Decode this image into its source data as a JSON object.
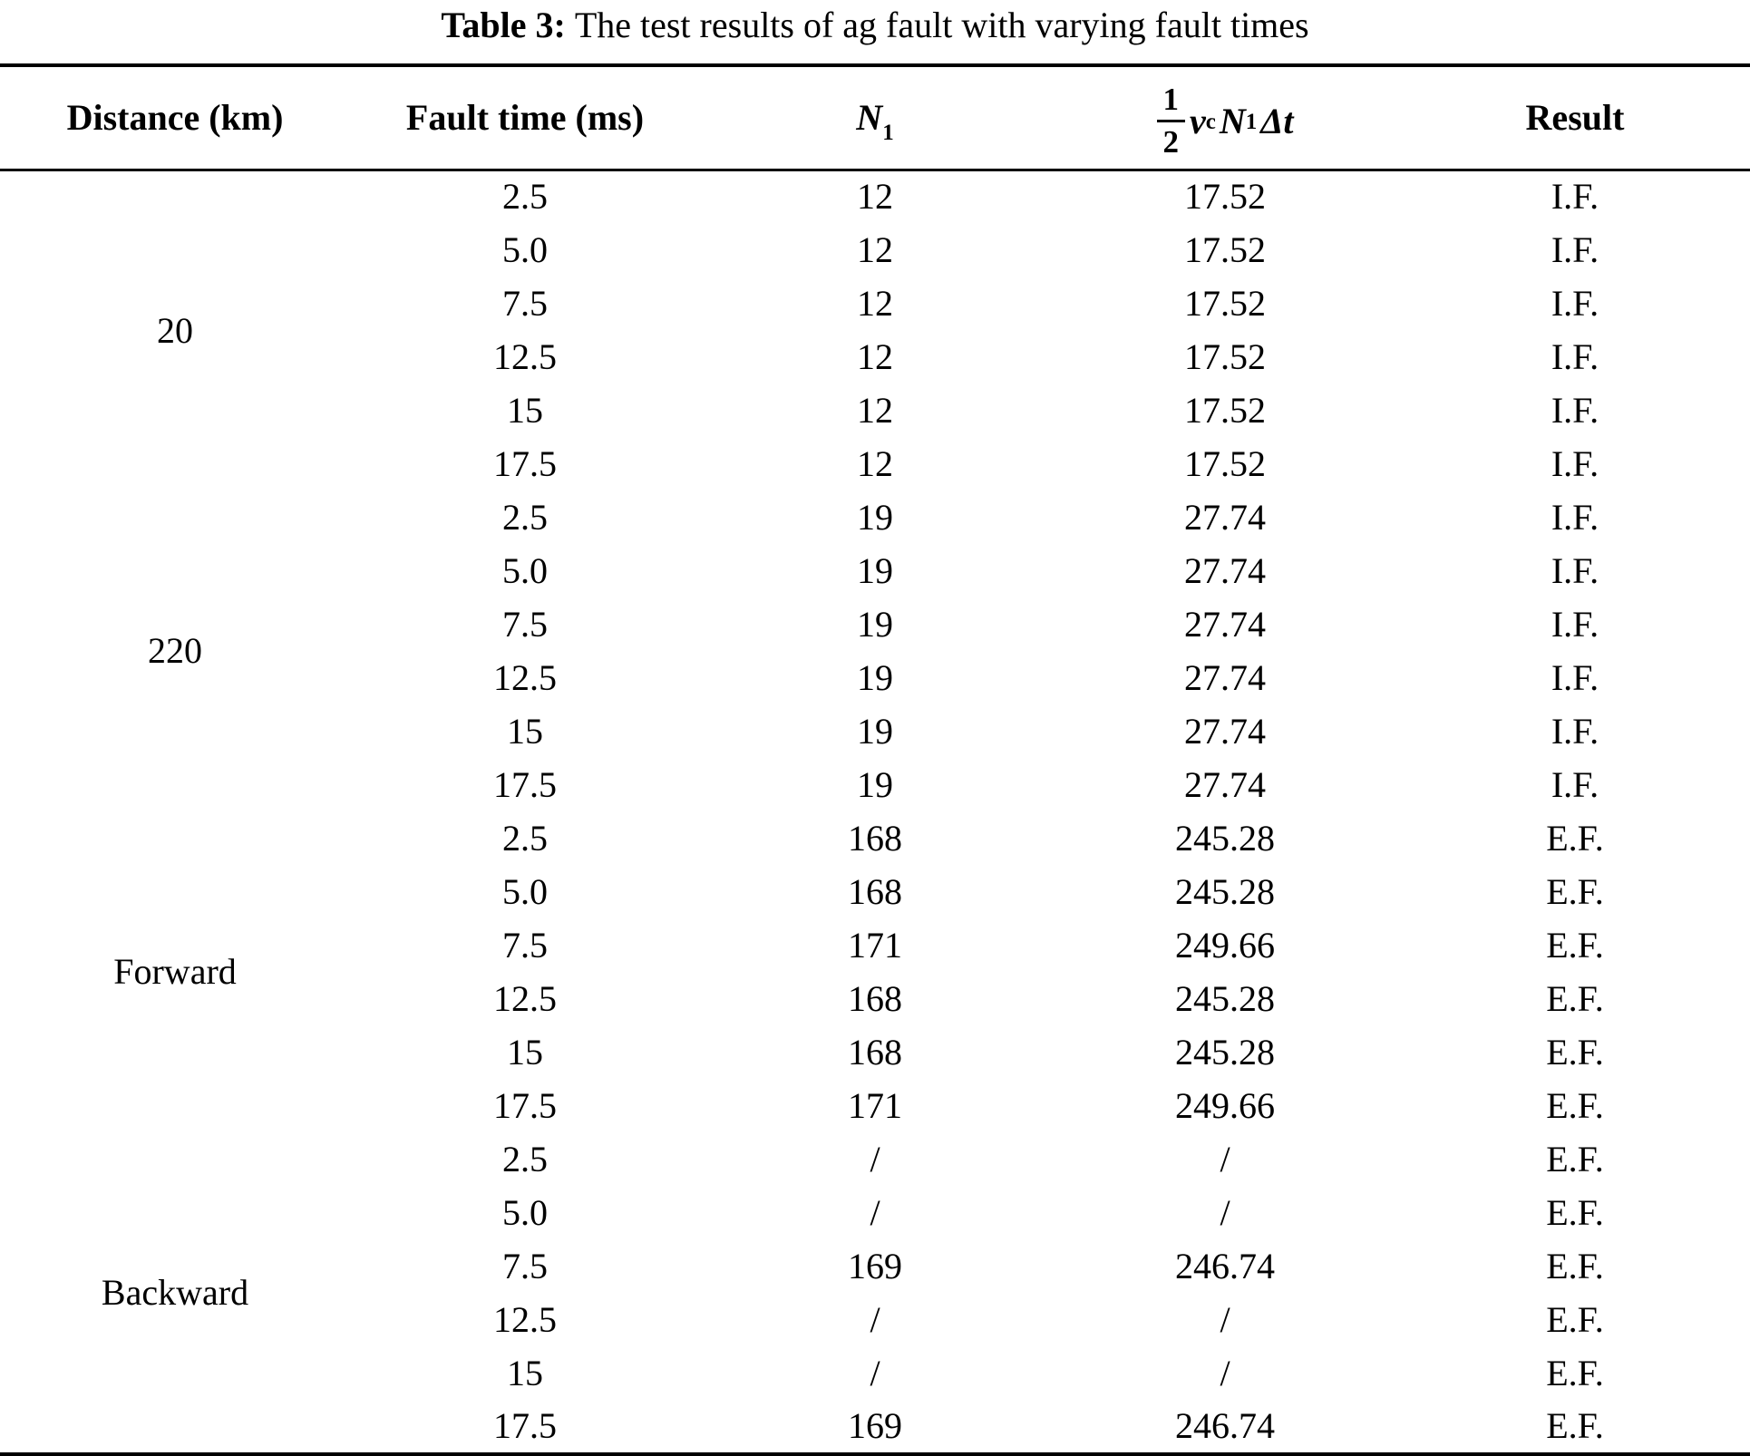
{
  "page": {
    "background": "#ffffff",
    "text_color": "#000000"
  },
  "caption": {
    "label": "Table 3:",
    "text": "The test results of ag fault with varying fault times"
  },
  "table": {
    "headers": {
      "distance": "Distance (km)",
      "fault_time": "Fault time (ms)",
      "n1": {
        "base": "N",
        "sub": "1"
      },
      "formula": {
        "numerator": "1",
        "denominator": "2",
        "var_v": "v",
        "sub_c": "c",
        "var_n": "N",
        "sub_1": "1",
        "delta": "Δ",
        "var_t": "t"
      },
      "result": "Result"
    },
    "groups": [
      {
        "label": "20",
        "rows": [
          {
            "fault_time": "2.5",
            "n1": "12",
            "value": "17.52",
            "result": "I.F."
          },
          {
            "fault_time": "5.0",
            "n1": "12",
            "value": "17.52",
            "result": "I.F."
          },
          {
            "fault_time": "7.5",
            "n1": "12",
            "value": "17.52",
            "result": "I.F."
          },
          {
            "fault_time": "12.5",
            "n1": "12",
            "value": "17.52",
            "result": "I.F."
          },
          {
            "fault_time": "15",
            "n1": "12",
            "value": "17.52",
            "result": "I.F."
          },
          {
            "fault_time": "17.5",
            "n1": "12",
            "value": "17.52",
            "result": "I.F."
          }
        ]
      },
      {
        "label": "220",
        "rows": [
          {
            "fault_time": "2.5",
            "n1": "19",
            "value": "27.74",
            "result": "I.F."
          },
          {
            "fault_time": "5.0",
            "n1": "19",
            "value": "27.74",
            "result": "I.F."
          },
          {
            "fault_time": "7.5",
            "n1": "19",
            "value": "27.74",
            "result": "I.F."
          },
          {
            "fault_time": "12.5",
            "n1": "19",
            "value": "27.74",
            "result": "I.F."
          },
          {
            "fault_time": "15",
            "n1": "19",
            "value": "27.74",
            "result": "I.F."
          },
          {
            "fault_time": "17.5",
            "n1": "19",
            "value": "27.74",
            "result": "I.F."
          }
        ]
      },
      {
        "label": "Forward",
        "rows": [
          {
            "fault_time": "2.5",
            "n1": "168",
            "value": "245.28",
            "result": "E.F."
          },
          {
            "fault_time": "5.0",
            "n1": "168",
            "value": "245.28",
            "result": "E.F."
          },
          {
            "fault_time": "7.5",
            "n1": "171",
            "value": "249.66",
            "result": "E.F."
          },
          {
            "fault_time": "12.5",
            "n1": "168",
            "value": "245.28",
            "result": "E.F."
          },
          {
            "fault_time": "15",
            "n1": "168",
            "value": "245.28",
            "result": "E.F."
          },
          {
            "fault_time": "17.5",
            "n1": "171",
            "value": "249.66",
            "result": "E.F."
          }
        ]
      },
      {
        "label": "Backward",
        "rows": [
          {
            "fault_time": "2.5",
            "n1": "/",
            "value": "/",
            "result": "E.F."
          },
          {
            "fault_time": "5.0",
            "n1": "/",
            "value": "/",
            "result": "E.F."
          },
          {
            "fault_time": "7.5",
            "n1": "169",
            "value": "246.74",
            "result": "E.F."
          },
          {
            "fault_time": "12.5",
            "n1": "/",
            "value": "/",
            "result": "E.F."
          },
          {
            "fault_time": "15",
            "n1": "/",
            "value": "/",
            "result": "E.F."
          },
          {
            "fault_time": "17.5",
            "n1": "169",
            "value": "246.74",
            "result": "E.F."
          }
        ]
      }
    ]
  }
}
